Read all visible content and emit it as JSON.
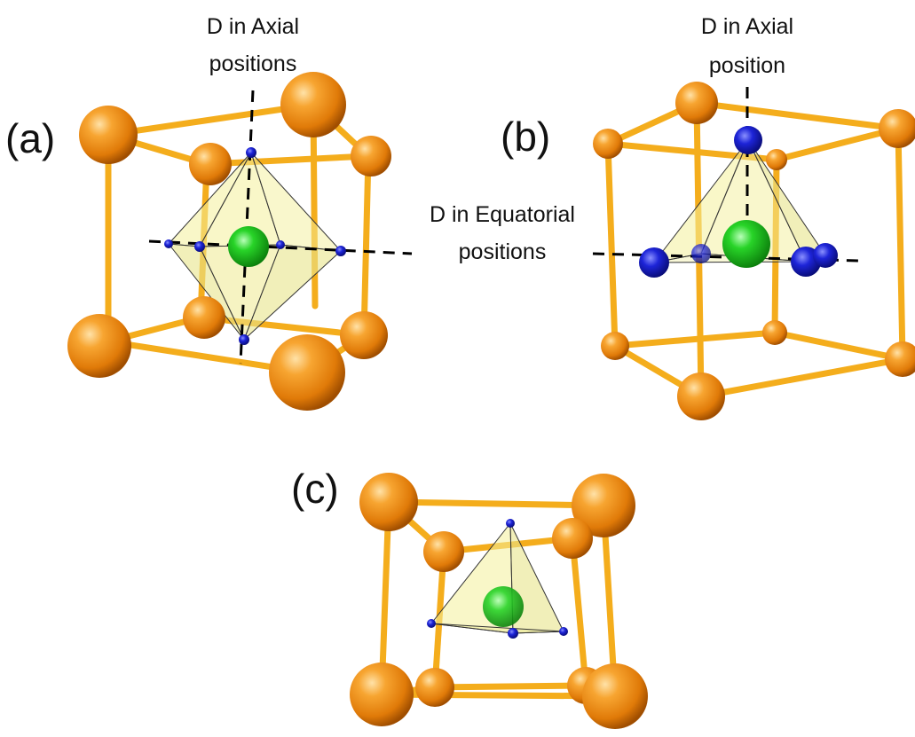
{
  "panels": [
    {
      "label": "(a)",
      "annotations": [
        "D in Axial",
        "positions",
        "D in Equatorial",
        "positions"
      ],
      "polyhedron": "octahedron"
    },
    {
      "label": "(b)",
      "annotations": [
        "D in Axial",
        "position"
      ],
      "polyhedron": "square-pyramid"
    },
    {
      "label": "(c)",
      "annotations": [],
      "polyhedron": "tetrahedron"
    }
  ],
  "colors": {
    "host_atom": "#f08a10",
    "bond": "#f7b520",
    "interstitial_atom": "#20c020",
    "deuterium_atom": "#1a20c8",
    "polyhedron_face": "#f4f09a"
  }
}
